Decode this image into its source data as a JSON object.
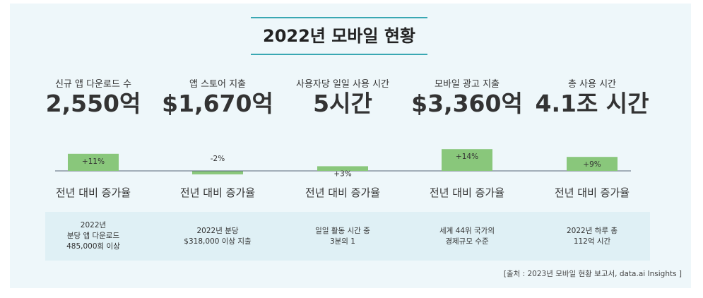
{
  "title": "2022년 모바일 현황",
  "source": "[출처 : 2023년 모바일 현황 보고서, data.ai Insights ]",
  "colors": {
    "panel_bg": "#eef7fa",
    "accent": "#3aa8b3",
    "bar": "#89c77b",
    "axis": "#556677",
    "info_bg": "#dff0f5"
  },
  "metrics": [
    {
      "label": "신규 앱 다운로드 수",
      "value": "2,550억",
      "growth_label": "전년 대비 증가율",
      "info": "2022년\n분당 앱 다운로드\n485,000회 이상"
    },
    {
      "label": "앱 스토어 지출",
      "value": "$1,670억",
      "growth_label": "전년 대비 증가율",
      "info": "2022년 분당\n$318,000 이상 지출"
    },
    {
      "label": "사용자당 일일 사용 시간",
      "value": "5시간",
      "growth_label": "전년 대비 증가율",
      "info": "일일 활동 시간 중\n3분의 1"
    },
    {
      "label": "모바일 광고 지출",
      "value": "$3,360억",
      "growth_label": "전년 대비 증가율",
      "info": "세계 44위 국가의\n경제규모 수준"
    },
    {
      "label": "총 사용 시간",
      "value": "4.1조 시간",
      "growth_label": "전년 대비 증가율",
      "info": "2022년 하루 총\n112억 시간"
    }
  ],
  "chart_data": {
    "type": "bar",
    "categories": [
      "신규 앱 다운로드 수",
      "앱 스토어 지출",
      "사용자당 일일 사용 시간",
      "모바일 광고 지출",
      "총 사용 시간"
    ],
    "values": [
      11,
      -2,
      3,
      14,
      9
    ],
    "value_labels": [
      "+11%",
      "-2%",
      "+3%",
      "+14%",
      "+9%"
    ],
    "xlabel": "",
    "ylabel": "",
    "grid": false
  }
}
